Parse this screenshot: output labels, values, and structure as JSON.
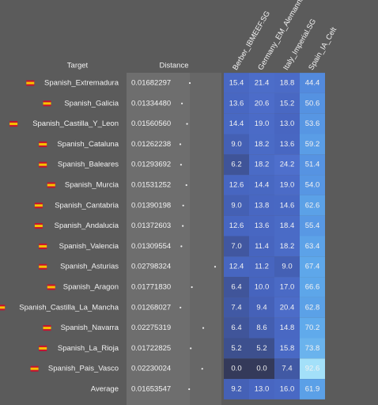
{
  "table": {
    "headers": {
      "target": "Target",
      "distance": "Distance",
      "columns": [
        "Berber_IBMEEF.SG",
        "Germany_EM_Alemannic",
        "Italy_Imperial.SG",
        "Spain_IA_Celt"
      ]
    },
    "rows": [
      [
        "Spanish_Extremadura",
        "0.01682297",
        "15.4",
        "21.4",
        "18.8",
        "44.4"
      ],
      [
        "Spanish_Galicia",
        "0.01334480",
        "13.6",
        "20.6",
        "15.2",
        "50.6"
      ],
      [
        "Spanish_Castilla_Y_Leon",
        "0.01560560",
        "14.4",
        "19.0",
        "13.0",
        "53.6"
      ],
      [
        "Spanish_Cataluna",
        "0.01262238",
        "9.0",
        "18.2",
        "13.6",
        "59.2"
      ],
      [
        "Spanish_Baleares",
        "0.01293692",
        "6.2",
        "18.2",
        "24.2",
        "51.4"
      ],
      [
        "Spanish_Murcia",
        "0.01531252",
        "12.6",
        "14.4",
        "19.0",
        "54.0"
      ],
      [
        "Spanish_Cantabria",
        "0.01390198",
        "9.0",
        "13.8",
        "14.6",
        "62.6"
      ],
      [
        "Spanish_Andalucia",
        "0.01372603",
        "12.6",
        "13.6",
        "18.4",
        "55.4"
      ],
      [
        "Spanish_Valencia",
        "0.01309554",
        "7.0",
        "11.4",
        "18.2",
        "63.4"
      ],
      [
        "Spanish_Asturias",
        "0.02798324",
        "12.4",
        "11.2",
        "9.0",
        "67.4"
      ],
      [
        "Spanish_Aragon",
        "0.01771830",
        "6.4",
        "10.0",
        "17.0",
        "66.6"
      ],
      [
        "Spanish_Castilla_La_Mancha",
        "0.01268027",
        "7.4",
        "9.4",
        "20.4",
        "62.8"
      ],
      [
        "Spanish_Navarra",
        "0.02275319",
        "6.4",
        "8.6",
        "14.8",
        "70.2"
      ],
      [
        "Spanish_La_Rioja",
        "0.01722825",
        "5.2",
        "5.2",
        "15.8",
        "73.8"
      ],
      [
        "Spanish_Pais_Vasco",
        "0.02230024",
        "0.0",
        "0.0",
        "7.4",
        "92.6"
      ]
    ],
    "average": [
      "Average",
      "0.01653547",
      "9.2",
      "13.0",
      "16.0",
      "61.9"
    ]
  }
}
